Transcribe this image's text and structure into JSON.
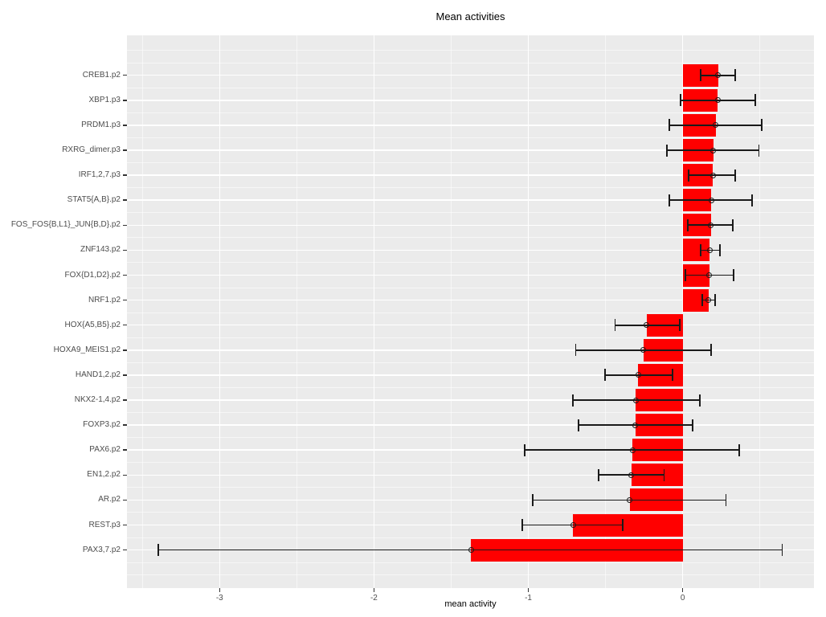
{
  "chart_data": {
    "type": "bar",
    "orientation": "horizontal",
    "title": "Mean activities",
    "xlabel": "mean activity",
    "ylabel": "",
    "xlim": [
      -3.6,
      0.85
    ],
    "x_major_ticks": [
      -3,
      -2,
      -1,
      0
    ],
    "x_tick_labels": [
      "-3",
      "-2",
      "-1",
      "0"
    ],
    "x_minor_gridlines": [
      -3.5,
      -2.5,
      -1.5,
      -0.5,
      0.5
    ],
    "grid": true,
    "legend_position": "none",
    "categories": [
      "CREB1.p2",
      "XBP1.p3",
      "PRDM1.p3",
      "RXRG_dimer.p3",
      "IRF1,2,7.p3",
      "STAT5{A,B}.p2",
      "FOS_FOS{B,L1}_JUN{B,D}.p2",
      "ZNF143.p2",
      "FOX{D1,D2}.p2",
      "NRF1.p2",
      "HOX{A5,B5}.p2",
      "HOXA9_MEIS1.p2",
      "HAND1,2.p2",
      "NKX2-1,4.p2",
      "FOXP3.p2",
      "PAX6.p2",
      "EN1,2.p2",
      "AR.p2",
      "REST.p3",
      "PAX3,7.p2"
    ],
    "series": [
      {
        "name": "mean activity",
        "values": [
          0.23,
          0.228,
          0.213,
          0.199,
          0.196,
          0.185,
          0.182,
          0.174,
          0.172,
          0.168,
          -0.234,
          -0.255,
          -0.289,
          -0.303,
          -0.306,
          -0.326,
          -0.334,
          -0.343,
          -0.71,
          -1.371
        ]
      }
    ],
    "error_low": [
      0.116,
      -0.014,
      -0.087,
      -0.104,
      0.04,
      -0.087,
      0.031,
      0.116,
      0.017,
      0.126,
      -0.438,
      -0.693,
      -0.505,
      -0.713,
      -0.675,
      -1.022,
      -0.545,
      -0.97,
      -1.039,
      -3.397
    ],
    "error_high": [
      0.338,
      0.468,
      0.511,
      0.494,
      0.341,
      0.45,
      0.326,
      0.239,
      0.329,
      0.211,
      -0.021,
      0.182,
      -0.064,
      0.113,
      0.064,
      0.364,
      -0.121,
      0.28,
      -0.39,
      0.644
    ],
    "colors": {
      "bar": "#ff0000",
      "plot_background": "#ebebeb",
      "grid": "#ffffff",
      "errorbar": "#1a1a1a",
      "tick_text": "#4d4d4d",
      "title_text": "#000000"
    }
  }
}
